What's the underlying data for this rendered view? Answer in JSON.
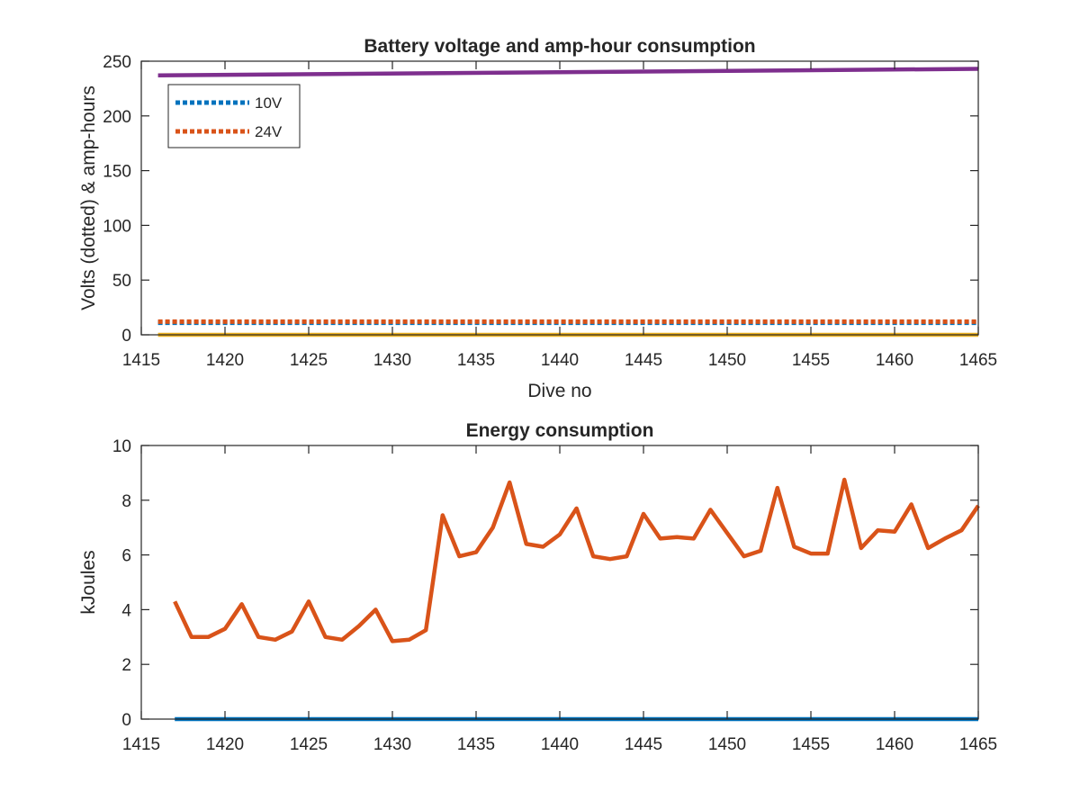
{
  "chart_data": [
    {
      "type": "line",
      "title": "Battery voltage and amp-hour consumption",
      "xlabel": "Dive no",
      "ylabel": "Volts (dotted) & amp-hours",
      "xlim": [
        1415,
        1465
      ],
      "ylim": [
        0,
        250
      ],
      "xticks": [
        1415,
        1420,
        1425,
        1430,
        1435,
        1440,
        1445,
        1450,
        1455,
        1460,
        1465
      ],
      "yticks": [
        0,
        50,
        100,
        150,
        200,
        250
      ],
      "grid": false,
      "legend_position": "top-left",
      "series": [
        {
          "name": "10V",
          "style": "dotted",
          "color": "#0072BD",
          "x": [
            1416,
            1465
          ],
          "values": [
            11,
            11
          ]
        },
        {
          "name": "24V",
          "style": "dotted",
          "color": "#D95319",
          "x": [
            1416,
            1465
          ],
          "values": [
            12,
            12
          ]
        },
        {
          "style": "solid",
          "color": "#7E2F8E",
          "x": [
            1416,
            1465
          ],
          "values": [
            237,
            243
          ]
        },
        {
          "style": "solid",
          "color": "#EDB120",
          "x": [
            1416,
            1465
          ],
          "values": [
            0,
            0
          ]
        }
      ]
    },
    {
      "type": "line",
      "title": "Energy consumption",
      "xlabel": "",
      "ylabel": "kJoules",
      "xlim": [
        1415,
        1465
      ],
      "ylim": [
        0,
        10
      ],
      "xticks": [
        1415,
        1420,
        1425,
        1430,
        1435,
        1440,
        1445,
        1450,
        1455,
        1460,
        1465
      ],
      "yticks": [
        0,
        2,
        4,
        6,
        8,
        10
      ],
      "grid": false,
      "series": [
        {
          "style": "solid",
          "color": "#D95319",
          "x": [
            1417,
            1418,
            1419,
            1420,
            1421,
            1422,
            1423,
            1424,
            1425,
            1426,
            1427,
            1428,
            1429,
            1430,
            1431,
            1432,
            1433,
            1434,
            1435,
            1436,
            1437,
            1438,
            1439,
            1440,
            1441,
            1442,
            1443,
            1444,
            1445,
            1446,
            1447,
            1448,
            1449,
            1450,
            1451,
            1452,
            1453,
            1454,
            1455,
            1456,
            1457,
            1458,
            1459,
            1460,
            1461,
            1462,
            1463,
            1464,
            1465
          ],
          "values": [
            4.3,
            3.0,
            3.0,
            3.3,
            4.2,
            3.0,
            2.9,
            3.2,
            4.3,
            3.0,
            2.9,
            3.4,
            4.0,
            2.85,
            2.9,
            3.25,
            7.45,
            5.95,
            6.1,
            7.0,
            8.65,
            6.4,
            6.3,
            6.75,
            7.7,
            5.95,
            5.85,
            5.95,
            7.5,
            6.6,
            6.65,
            6.6,
            7.65,
            6.8,
            5.95,
            6.15,
            8.45,
            6.3,
            6.05,
            6.05,
            8.75,
            6.25,
            6.9,
            6.85,
            7.85,
            6.25,
            6.6,
            6.9,
            7.8
          ]
        },
        {
          "style": "solid",
          "color": "#0072BD",
          "x": [
            1417,
            1465
          ],
          "values": [
            0,
            0
          ]
        }
      ]
    }
  ]
}
